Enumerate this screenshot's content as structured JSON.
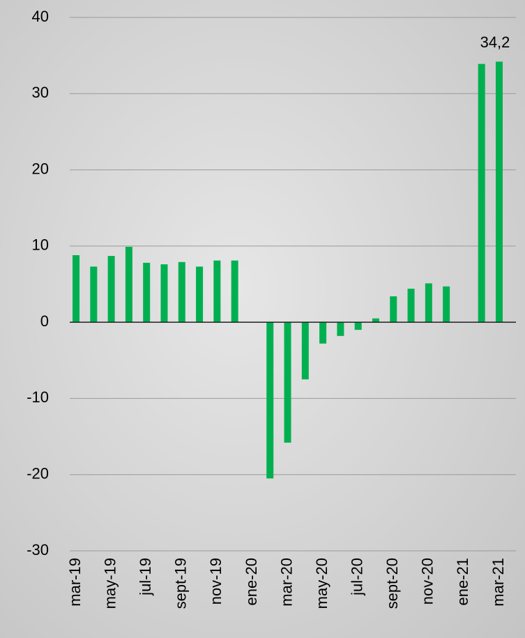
{
  "chart_data": {
    "type": "bar",
    "categories": [
      "mar-19",
      null,
      "may-19",
      null,
      "jul-19",
      null,
      "sept-19",
      null,
      "nov-19",
      null,
      "ene-20",
      null,
      "mar-20",
      null,
      "may-20",
      null,
      "jul-20",
      null,
      "sept-20",
      null,
      "nov-20",
      null,
      "ene-21",
      null,
      "mar-21"
    ],
    "values": [
      8.8,
      7.3,
      8.7,
      9.9,
      7.8,
      7.6,
      7.9,
      7.3,
      8.1,
      8.1,
      null,
      -20.5,
      -15.8,
      -7.5,
      -2.8,
      -1.8,
      -1.0,
      0.5,
      3.4,
      4.4,
      5.1,
      4.7,
      null,
      33.9,
      34.2
    ],
    "value_labels": [
      null,
      null,
      null,
      null,
      null,
      null,
      null,
      null,
      null,
      null,
      null,
      null,
      null,
      null,
      null,
      null,
      null,
      null,
      null,
      null,
      null,
      null,
      null,
      null,
      "34,2"
    ],
    "color": "#00b050",
    "ylim": [
      -30,
      40
    ],
    "yticks": [
      -30,
      -20,
      -10,
      0,
      10,
      20,
      30,
      40
    ],
    "grid": true
  }
}
